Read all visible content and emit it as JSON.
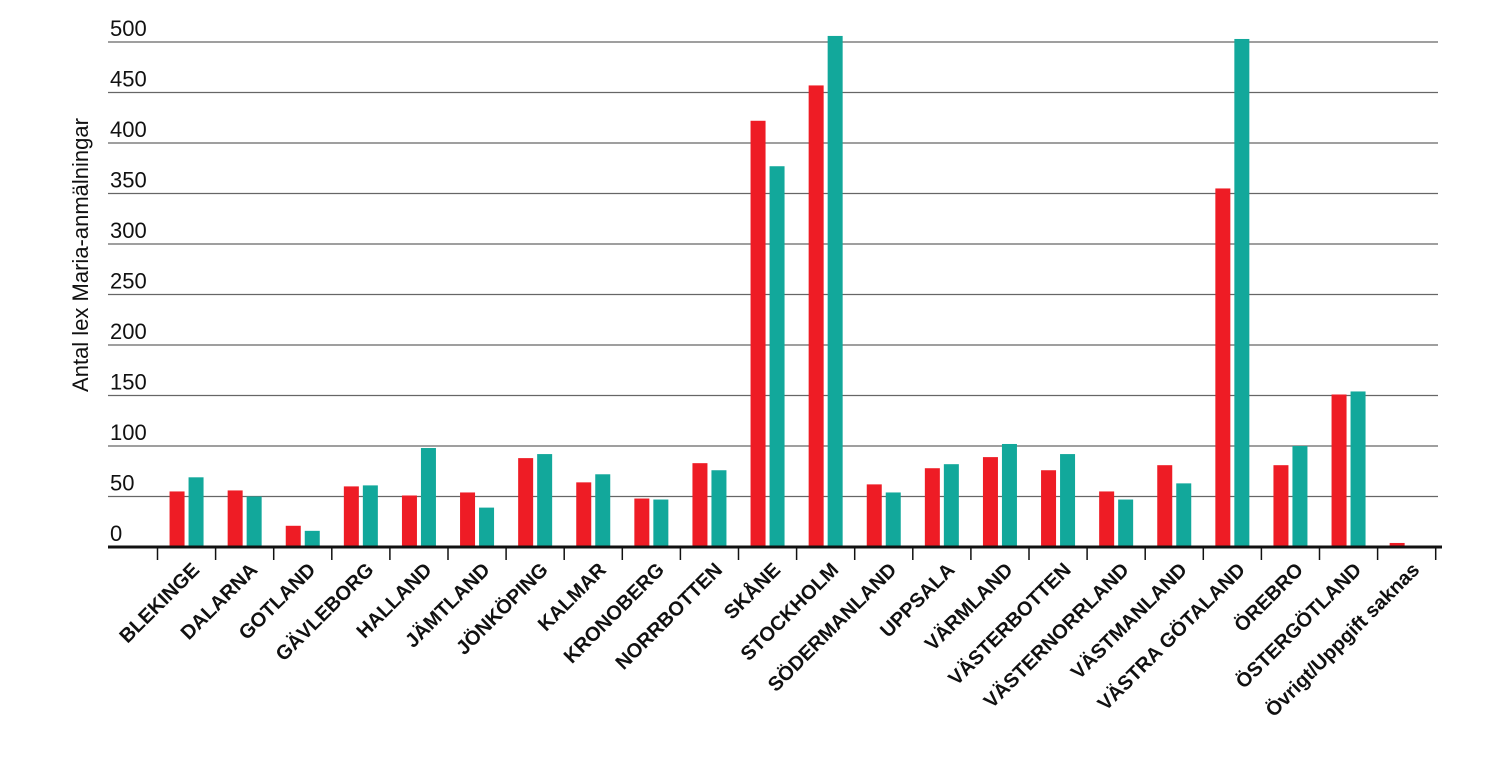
{
  "chart_data": {
    "type": "bar",
    "title": "",
    "xlabel": "",
    "ylabel": "Antal lex Maria-anmälningar",
    "ylim": [
      0,
      500
    ],
    "yticks": [
      0,
      50,
      100,
      150,
      200,
      250,
      300,
      350,
      400,
      450,
      500
    ],
    "grid": true,
    "categories": [
      "BLEKINGE",
      "DALARNA",
      "GOTLAND",
      "GÄVLEBORG",
      "HALLAND",
      "JÄMTLAND",
      "JÖNKÖPING",
      "KALMAR",
      "KRONOBERG",
      "NORRBOTTEN",
      "SKÅNE",
      "STOCKHOLM",
      "SÖDERMANLAND",
      "UPPSALA",
      "VÄRMLAND",
      "VÄSTERBOTTEN",
      "VÄSTERNORRLAND",
      "VÄSTMANLAND",
      "VÄSTRA GÖTALAND",
      "ÖREBRO",
      "ÖSTERGÖTLAND",
      "Övrigt/Uppgift saknas"
    ],
    "series": [
      {
        "color": "#ee1c25",
        "values": [
          55,
          56,
          21,
          60,
          51,
          54,
          88,
          64,
          48,
          83,
          422,
          457,
          62,
          78,
          89,
          76,
          55,
          81,
          355,
          81,
          151,
          4
        ]
      },
      {
        "color": "#12a89b",
        "values": [
          69,
          50,
          16,
          61,
          98,
          39,
          92,
          72,
          47,
          76,
          377,
          506,
          54,
          82,
          102,
          92,
          47,
          63,
          503,
          100,
          154,
          0
        ]
      }
    ]
  }
}
